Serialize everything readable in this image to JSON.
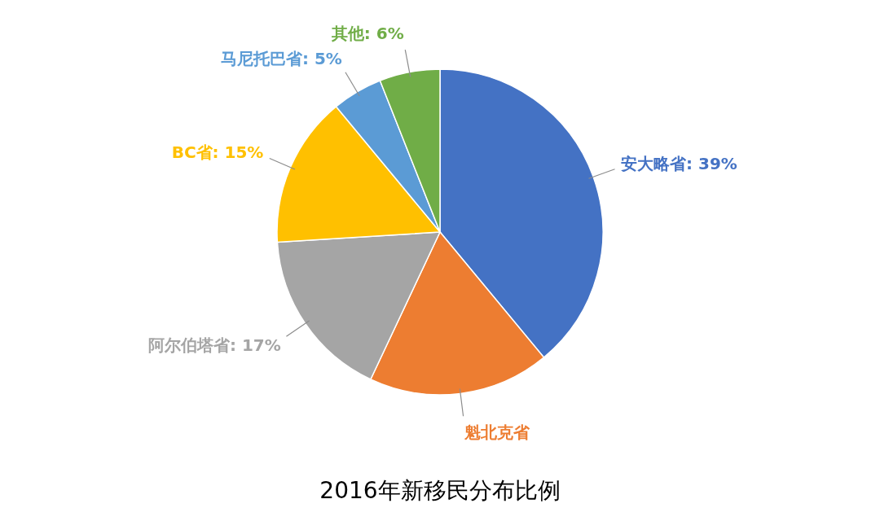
{
  "chart_data": {
    "type": "pie",
    "title": "2016年新移民分布比例",
    "categories": [
      "安大略省",
      "魁北克省",
      "阿尔伯塔省",
      "BC省",
      "马尼托巴省",
      "其他"
    ],
    "values": [
      39,
      18,
      17,
      15,
      5,
      6
    ],
    "colors": [
      "#4472c4",
      "#ed7d31",
      "#a5a5a5",
      "#ffc000",
      "#5b9bd5",
      "#70ad47"
    ],
    "value_labels": [
      "39%",
      null,
      "17%",
      "15%",
      "5%",
      "6%"
    ]
  }
}
